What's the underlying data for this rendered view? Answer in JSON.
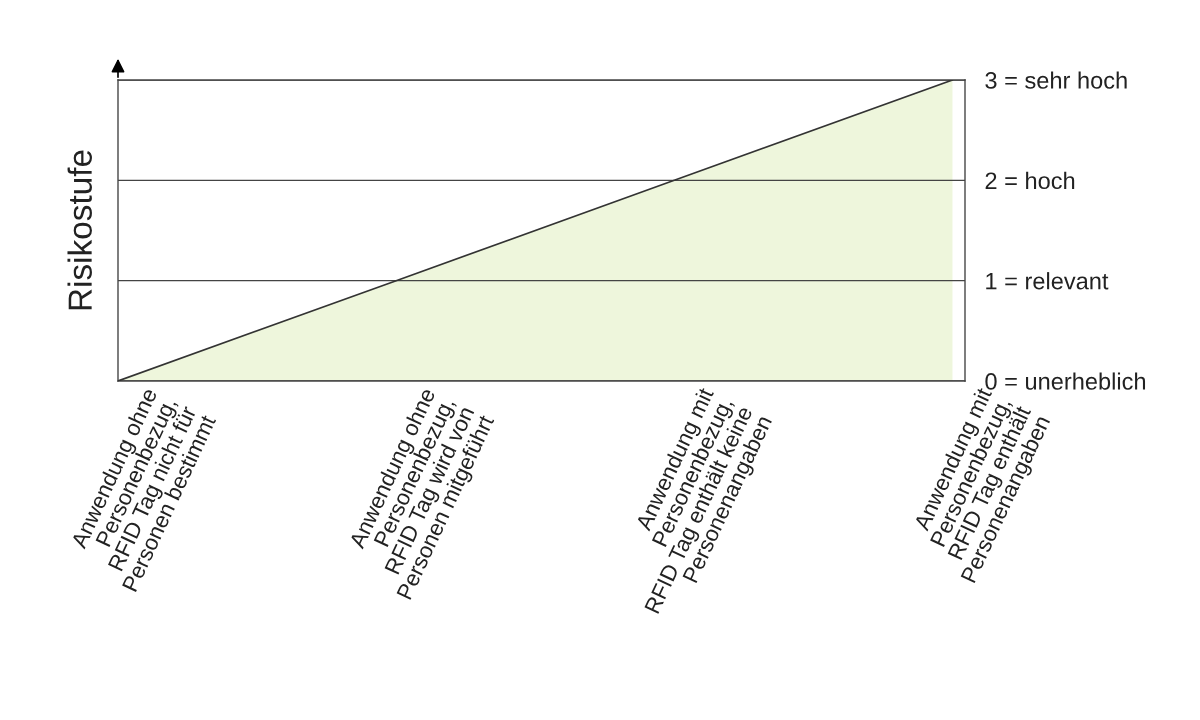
{
  "chart_data": {
    "type": "area",
    "ylabel": "Risikostufe",
    "categories": [
      "Anwendung ohne\nPersonenbezug,\nRFID Tag nicht für\nPersonen bestimmt",
      "Anwendung ohne\nPersonenbezug,\nRFID Tag wird von\nPersonen mitgeführt",
      "Anwendung mit\nPersonenbezug,\nRFID Tag enthält keine\nPersonenangaben",
      "Anwendung mit\nPersonenbezug,\nRFID Tag enthält\nPersonenangaben"
    ],
    "series": [
      {
        "color": "#eef6dc",
        "values": [
          0,
          1,
          2,
          3
        ]
      }
    ],
    "ylim": [
      0,
      3
    ],
    "yticks": [
      {
        "value": 0,
        "label": "0 = unerheblich"
      },
      {
        "value": 1,
        "label": "1 = relevant"
      },
      {
        "value": 2,
        "label": "2 = hoch"
      },
      {
        "value": 3,
        "label": "3 = sehr hoch"
      }
    ],
    "grid": "y"
  }
}
